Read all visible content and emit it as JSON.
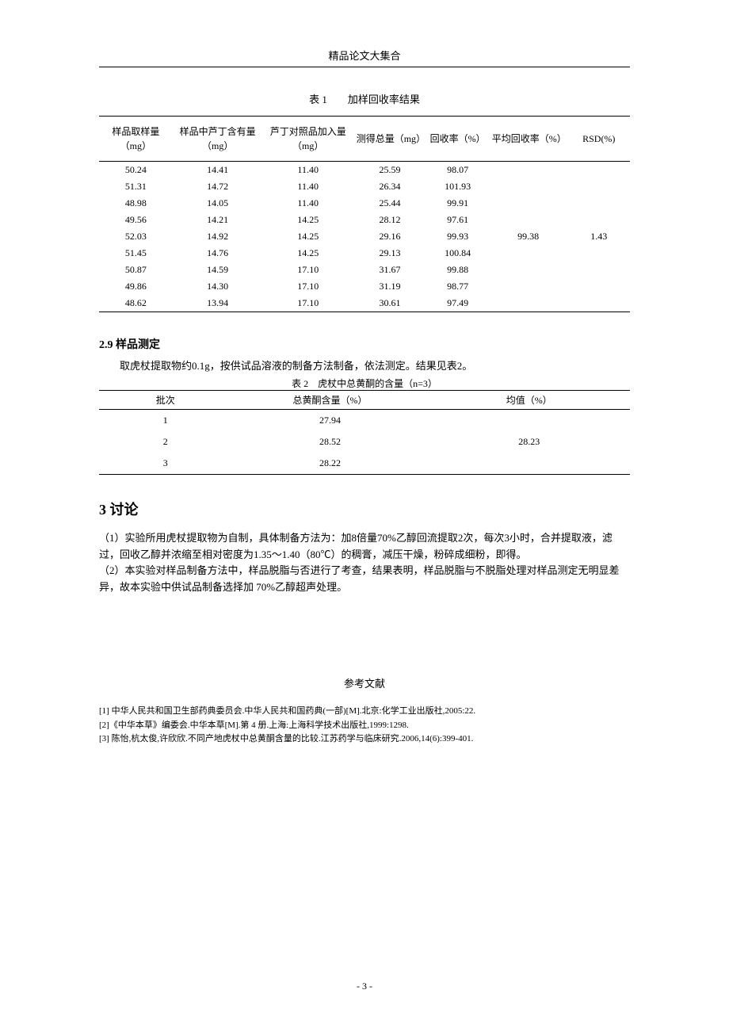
{
  "header": "精品论文大集合",
  "table1": {
    "caption": "表 1　　加样回收率结果",
    "columns": [
      "样品取样量（mg）",
      "样品中芦丁含有量（mg）",
      "芦丁对照品加入量（mg）",
      "测得总量（mg）",
      "回收率（%）",
      "平均回收率（%）",
      "RSD(%)"
    ],
    "rows": [
      [
        "50.24",
        "14.41",
        "11.40",
        "25.59",
        "98.07"
      ],
      [
        "51.31",
        "14.72",
        "11.40",
        "26.34",
        "101.93"
      ],
      [
        "48.98",
        "14.05",
        "11.40",
        "25.44",
        "99.91"
      ],
      [
        "49.56",
        "14.21",
        "14.25",
        "28.12",
        "97.61"
      ],
      [
        "52.03",
        "14.92",
        "14.25",
        "29.16",
        "99.93"
      ],
      [
        "51.45",
        "14.76",
        "14.25",
        "29.13",
        "100.84"
      ],
      [
        "50.87",
        "14.59",
        "17.10",
        "31.67",
        "99.88"
      ],
      [
        "49.86",
        "14.30",
        "17.10",
        "31.19",
        "98.77"
      ],
      [
        "48.62",
        "13.94",
        "17.10",
        "30.61",
        "97.49"
      ]
    ],
    "avg_recovery": "99.38",
    "rsd": "1.43",
    "col_widths": [
      "13%",
      "16%",
      "16%",
      "13%",
      "11%",
      "14%",
      "11%"
    ]
  },
  "section29": {
    "title_num": "2.9",
    "title_text": " 样品测定",
    "body": "取虎杖提取物约0.1g，按供试品溶液的制备方法制备，依法测定。结果见表2。"
  },
  "table2": {
    "caption": "表 2　虎杖中总黄酮的含量（n=3）",
    "columns": [
      "批次",
      "总黄酮含量（%）",
      "均值（%）"
    ],
    "rows": [
      [
        "1",
        "27.94"
      ],
      [
        "2",
        "28.52"
      ],
      [
        "3",
        "28.22"
      ]
    ],
    "mean": "28.23",
    "col_widths": [
      "25%",
      "37%",
      "38%"
    ]
  },
  "section3": {
    "title_num": "3",
    "title_text": " 讨论",
    "p1": "（1）实验所用虎杖提取物为自制，具体制备方法为：加8倍量70%乙醇回流提取2次，每次3小时，合并提取液，滤过，回收乙醇并浓缩至相对密度为1.35～1.40（80℃）的稠膏，减压干燥，粉碎成细粉，即得。",
    "p2": "（2）本实验对样品制备方法中，样品脱脂与否进行了考查，结果表明，样品脱脂与不脱脂处理对样品测定无明显差异，故本实验中供试品制备选择加 70%乙醇超声处理。"
  },
  "references": {
    "title": "参考文献",
    "items": [
      "[1] 中华人民共和国卫生部药典委员会.中华人民共和国药典(一部)[M].北京:化学工业出版社,2005:22.",
      "[2]《中华本草》编委会.中华本草[M].第 4 册.上海:上海科学技术出版社,1999:1298.",
      "[3] 陈怡,杭太俊,许欣欣.不同产地虎杖中总黄酮含量的比较.江苏药学与临床研究.2006,14(6):399-401."
    ]
  },
  "page_number": "- 3 -"
}
